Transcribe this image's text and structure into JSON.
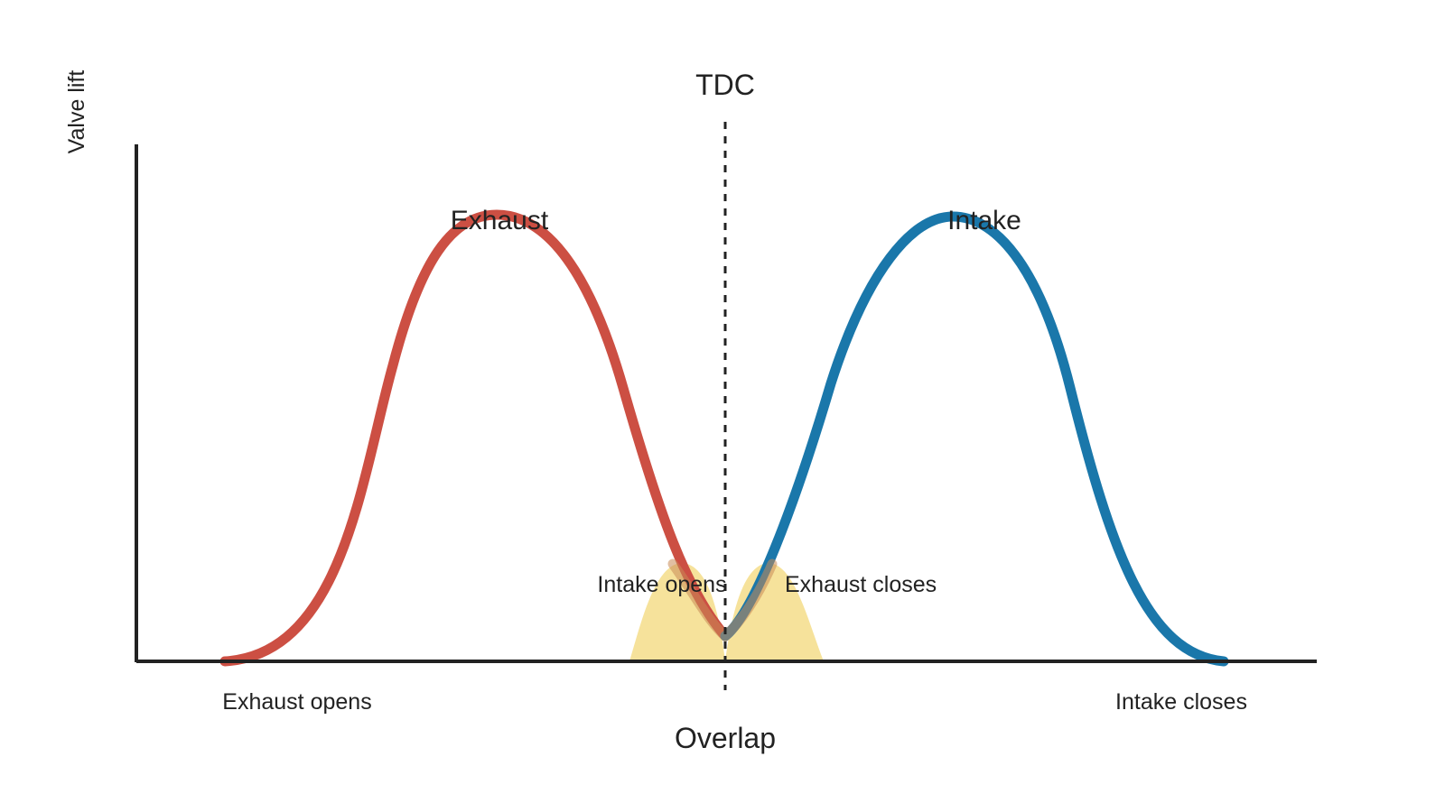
{
  "y_axis_label": "Valve lift",
  "tdc_label": "TDC",
  "overlap_label": "Overlap",
  "curves": {
    "exhaust": {
      "name": "Exhaust",
      "color": "#cc4f43"
    },
    "intake": {
      "name": "Intake",
      "color": "#1a77aa"
    }
  },
  "events": {
    "exhaust_opens": "Exhaust opens",
    "intake_opens": "Intake opens",
    "exhaust_closes": "Exhaust closes",
    "intake_closes": "Intake closes"
  },
  "colors": {
    "axis": "#222222",
    "overlap_fill": "#f4dd8a",
    "overlap_mix": "#8aa07c"
  }
}
